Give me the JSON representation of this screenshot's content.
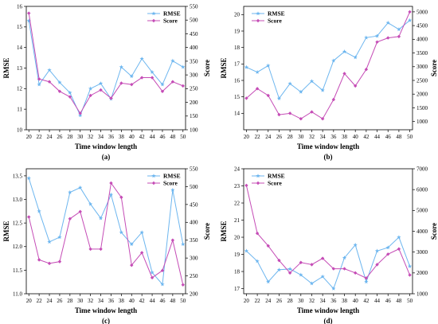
{
  "colors": {
    "rmse": "#6db6ef",
    "score": "#c54cb6"
  },
  "chart_data": [
    {
      "type": "line",
      "caption": "(a)",
      "xlabel": "Time window length",
      "ylabel": "RMSE",
      "y2label": "Score",
      "x": [
        20,
        22,
        24,
        26,
        28,
        30,
        32,
        34,
        36,
        38,
        40,
        42,
        44,
        46,
        48,
        50
      ],
      "xticks": [
        "20",
        "22",
        "24",
        "26",
        "28",
        "30",
        "32",
        "34",
        "36",
        "38",
        "40",
        "42",
        "44",
        "46",
        "48",
        "50"
      ],
      "xlim": [
        19.5,
        50.5
      ],
      "ylim": [
        10,
        16
      ],
      "yticks": [
        "10",
        "11",
        "12",
        "13",
        "14",
        "15",
        "16"
      ],
      "ytick_values": [
        10,
        11,
        12,
        13,
        14,
        15,
        16
      ],
      "y2lim": [
        100,
        550
      ],
      "y2ticks": [
        "100",
        "150",
        "200",
        "250",
        "300",
        "350",
        "400",
        "450",
        "500",
        "550"
      ],
      "y2tick_values": [
        100,
        150,
        200,
        250,
        300,
        350,
        400,
        450,
        500,
        550
      ],
      "legend": "top-right",
      "series": [
        {
          "name": "RMSE",
          "axis": "left",
          "color_key": "rmse",
          "marker": "star",
          "values": [
            15.3,
            12.2,
            12.9,
            12.3,
            11.8,
            10.7,
            12.0,
            12.25,
            11.5,
            13.05,
            12.6,
            13.45,
            12.8,
            12.2,
            13.35,
            13.05
          ]
        },
        {
          "name": "Score",
          "axis": "right",
          "color_key": "score",
          "marker": "diamond",
          "values": [
            525,
            285,
            275,
            240,
            220,
            160,
            225,
            245,
            215,
            270,
            265,
            290,
            290,
            240,
            275,
            260
          ]
        }
      ]
    },
    {
      "type": "line",
      "caption": "(b)",
      "xlabel": "Time window length",
      "ylabel": "RMSE",
      "y2label": "Score",
      "x": [
        20,
        22,
        24,
        26,
        28,
        30,
        32,
        34,
        36,
        38,
        40,
        42,
        44,
        46,
        48,
        50
      ],
      "xticks": [
        "20",
        "22",
        "24",
        "26",
        "28",
        "30",
        "32",
        "34",
        "36",
        "38",
        "40",
        "42",
        "44",
        "46",
        "48",
        "50"
      ],
      "xlim": [
        19.5,
        50.5
      ],
      "ylim": [
        13,
        20.5
      ],
      "yticks": [
        "14",
        "15",
        "16",
        "17",
        "18",
        "19",
        "20"
      ],
      "ytick_values": [
        14,
        15,
        16,
        17,
        18,
        19,
        20
      ],
      "y2lim": [
        700,
        5200
      ],
      "y2ticks": [
        "1000",
        "1500",
        "2000",
        "2500",
        "3000",
        "3500",
        "4000",
        "4500",
        "5000"
      ],
      "y2tick_values": [
        1000,
        1500,
        2000,
        2500,
        3000,
        3500,
        4000,
        4500,
        5000
      ],
      "legend": "top-left",
      "series": [
        {
          "name": "RMSE",
          "axis": "left",
          "color_key": "rmse",
          "marker": "star",
          "values": [
            16.8,
            16.5,
            16.9,
            14.9,
            15.8,
            15.3,
            15.95,
            15.4,
            17.2,
            17.75,
            17.4,
            18.6,
            18.7,
            19.5,
            19.1,
            19.65
          ]
        },
        {
          "name": "Score",
          "axis": "right",
          "color_key": "score",
          "marker": "diamond",
          "values": [
            1850,
            2200,
            1950,
            1250,
            1300,
            1100,
            1350,
            1100,
            1800,
            2750,
            2300,
            2900,
            3900,
            4050,
            4100,
            5000
          ]
        }
      ]
    },
    {
      "type": "line",
      "caption": "(c)",
      "xlabel": "Time window length",
      "ylabel": "RMSE",
      "y2label": "Score",
      "x": [
        20,
        22,
        24,
        26,
        28,
        30,
        32,
        34,
        36,
        38,
        40,
        42,
        44,
        46,
        48,
        50
      ],
      "xticks": [
        "20",
        "22",
        "24",
        "26",
        "28",
        "30",
        "32",
        "34",
        "36",
        "38",
        "40",
        "42",
        "44",
        "46",
        "48",
        "50"
      ],
      "xlim": [
        19.5,
        50.5
      ],
      "ylim": [
        11,
        13.65
      ],
      "yticks": [
        "11.0",
        "11.5",
        "12.0",
        "12.5",
        "13.0",
        "13.5"
      ],
      "ytick_values": [
        11.0,
        11.5,
        12.0,
        12.5,
        13.0,
        13.5
      ],
      "y2lim": [
        200,
        550
      ],
      "y2ticks": [
        "200",
        "250",
        "300",
        "350",
        "400",
        "450",
        "500",
        "550"
      ],
      "y2tick_values": [
        200,
        250,
        300,
        350,
        400,
        450,
        500,
        550
      ],
      "legend": "top-right",
      "series": [
        {
          "name": "RMSE",
          "axis": "left",
          "color_key": "rmse",
          "marker": "star",
          "values": [
            13.45,
            12.75,
            12.1,
            12.2,
            13.15,
            13.25,
            12.9,
            12.6,
            13.1,
            12.3,
            12.05,
            12.3,
            11.45,
            11.2,
            13.2,
            12.05
          ]
        },
        {
          "name": "Score",
          "axis": "right",
          "color_key": "score",
          "marker": "diamond",
          "values": [
            415,
            295,
            285,
            290,
            410,
            430,
            325,
            325,
            510,
            470,
            280,
            315,
            245,
            265,
            350,
            225
          ]
        }
      ]
    },
    {
      "type": "line",
      "caption": "(d)",
      "xlabel": "Time window length",
      "ylabel": "RMSE",
      "y2label": "Score",
      "x": [
        20,
        22,
        24,
        26,
        28,
        30,
        32,
        34,
        36,
        38,
        40,
        42,
        44,
        46,
        48,
        50
      ],
      "xticks": [
        "20",
        "22",
        "24",
        "26",
        "28",
        "30",
        "32",
        "34",
        "36",
        "38",
        "40",
        "42",
        "44",
        "46",
        "48",
        "50"
      ],
      "xlim": [
        19.5,
        50.5
      ],
      "ylim": [
        16.7,
        24
      ],
      "yticks": [
        "17",
        "18",
        "19",
        "20",
        "21",
        "22",
        "23",
        "24"
      ],
      "ytick_values": [
        17,
        18,
        19,
        20,
        21,
        22,
        23,
        24
      ],
      "y2lim": [
        1000,
        7000
      ],
      "y2ticks": [
        "1000",
        "2000",
        "3000",
        "4000",
        "5000",
        "6000",
        "7000"
      ],
      "y2tick_values": [
        1000,
        2000,
        3000,
        4000,
        5000,
        6000,
        7000
      ],
      "legend": "top-left",
      "series": [
        {
          "name": "RMSE",
          "axis": "left",
          "color_key": "rmse",
          "marker": "star",
          "values": [
            19.2,
            18.6,
            17.4,
            18.1,
            18.15,
            17.8,
            17.3,
            17.7,
            17.0,
            18.8,
            19.55,
            17.4,
            19.2,
            19.4,
            20.0,
            18.3
          ]
        },
        {
          "name": "Score",
          "axis": "right",
          "color_key": "score",
          "marker": "diamond",
          "values": [
            6200,
            3900,
            3300,
            2600,
            2000,
            2500,
            2400,
            2700,
            2200,
            2200,
            2000,
            1750,
            2400,
            2900,
            3150,
            1900
          ]
        }
      ]
    }
  ]
}
